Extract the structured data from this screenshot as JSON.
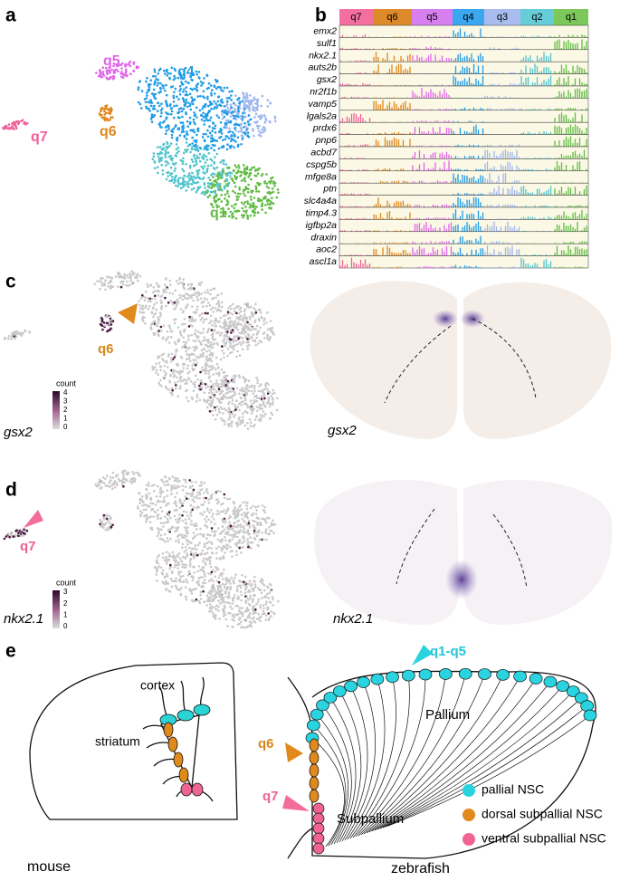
{
  "panels": {
    "a": {
      "label": "a",
      "clusters": [
        "q1",
        "q2",
        "q3",
        "q4",
        "q5",
        "q6",
        "q7"
      ]
    },
    "b": {
      "label": "b",
      "clusters": [
        "q7",
        "q6",
        "q5",
        "q4",
        "q3",
        "q2",
        "q1"
      ],
      "genes": [
        "emx2",
        "sulf1",
        "nkx2.1",
        "auts2b",
        "gsx2",
        "nr2f1b",
        "vamp5",
        "lgals2a",
        "prdx6",
        "pnp6",
        "acbd7",
        "cspg5b",
        "mfge8a",
        "ptn",
        "slc4a4a",
        "timp4.3",
        "igfbp2a",
        "draxin",
        "aoc2",
        "ascl1a"
      ]
    },
    "c": {
      "label": "c",
      "gene": "gsx2",
      "pointer": "q6",
      "legend_title": "count",
      "legend_ticks": [
        4,
        3,
        2,
        1,
        0
      ],
      "section_label": "gsx2"
    },
    "d": {
      "label": "d",
      "gene": "nkx2.1",
      "pointer": "q7",
      "legend_title": "count",
      "legend_ticks": [
        3,
        2,
        1,
        0
      ],
      "section_label": "nkx2.1"
    },
    "e": {
      "label": "e",
      "mouse": {
        "title": "mouse",
        "regions": [
          "cortex",
          "striatum"
        ]
      },
      "zebrafish": {
        "title": "zebrafish",
        "regions": [
          "Pallium",
          "Subpallium"
        ],
        "pointers": [
          "q1-q5",
          "q6",
          "q7"
        ]
      },
      "legend": [
        "pallial NSC",
        "dorsal subpallial NSC",
        "ventral subpallial NSC"
      ]
    }
  }
}
